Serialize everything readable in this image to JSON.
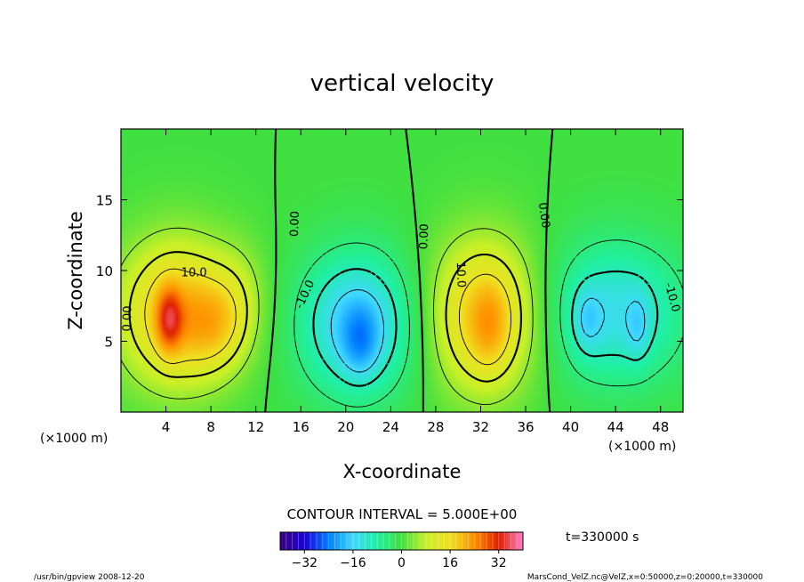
{
  "chart_data": {
    "type": "heatmap",
    "title": "vertical velocity",
    "xlabel": "X-coordinate",
    "ylabel": "Z-coordinate",
    "x_unit_left": "(×1000 m)",
    "x_unit_right": "(×1000 m)",
    "xlim": [
      0,
      50
    ],
    "ylim": [
      0,
      20
    ],
    "x_ticks": [
      4,
      8,
      12,
      16,
      20,
      24,
      28,
      32,
      36,
      40,
      44,
      48
    ],
    "y_ticks": [
      5,
      10,
      15
    ],
    "contour_interval_text": "CONTOUR INTERVAL = 5.000E+00",
    "contour_labels": [
      {
        "text": "10.0",
        "x": 6.5,
        "z": 9.8,
        "rot": 0
      },
      {
        "text": "0.00",
        "x": 0.6,
        "z": 6.6,
        "rot": -88
      },
      {
        "text": "0.00",
        "x": 15.5,
        "z": 13.3,
        "rot": -88
      },
      {
        "text": "-10.0",
        "x": 16.4,
        "z": 8.3,
        "rot": -65
      },
      {
        "text": "0.00",
        "x": 27.0,
        "z": 12.4,
        "rot": -88
      },
      {
        "text": "10.0",
        "x": 30.2,
        "z": 9.7,
        "rot": 88
      },
      {
        "text": "0.00",
        "x": 37.6,
        "z": 13.9,
        "rot": 82
      },
      {
        "text": "-10.0",
        "x": 49.0,
        "z": 8.1,
        "rot": 75
      }
    ],
    "cells": [
      {
        "x": 5.0,
        "z": 7.0,
        "sx": 3.6,
        "sz": 3.6,
        "amp": 20
      },
      {
        "x": 4.3,
        "z": 6.5,
        "sx": 0.8,
        "sz": 1.6,
        "amp": 15
      },
      {
        "x": 8.4,
        "z": 6.0,
        "sx": 2.0,
        "sz": 2.2,
        "amp": 8
      },
      {
        "x": 10.5,
        "z": 8.3,
        "sx": 1.8,
        "sz": 2.6,
        "amp": 4
      },
      {
        "x": 21.0,
        "z": 6.2,
        "sx": 3.6,
        "sz": 3.6,
        "amp": -18
      },
      {
        "x": 21.3,
        "z": 5.0,
        "sx": 1.1,
        "sz": 1.7,
        "amp": -8
      },
      {
        "x": 32.3,
        "z": 6.8,
        "sx": 3.4,
        "sz": 3.8,
        "amp": 19
      },
      {
        "x": 32.8,
        "z": 6.0,
        "sx": 1.2,
        "sz": 2.2,
        "amp": 6
      },
      {
        "x": 44.0,
        "z": 7.0,
        "sx": 4.4,
        "sz": 3.6,
        "amp": -14
      },
      {
        "x": 41.5,
        "z": 6.5,
        "sx": 0.9,
        "sz": 1.6,
        "amp": -6
      },
      {
        "x": 46.0,
        "z": 6.0,
        "sx": 0.7,
        "sz": 1.6,
        "amp": -5
      }
    ],
    "colorbar": {
      "min": -40,
      "max": 40,
      "ticks": [
        -32,
        -16,
        0,
        16,
        32
      ],
      "tick_labels": [
        "−32",
        "−16",
        "0",
        "16",
        "32"
      ],
      "colors": [
        "#3a0080",
        "#1a00d8",
        "#0080ff",
        "#40d8ff",
        "#20f0a0",
        "#40e040",
        "#c8f028",
        "#f0e020",
        "#ff9000",
        "#e02000",
        "#ff80c8"
      ]
    },
    "grid": false,
    "legend": "none"
  },
  "time_label": "t=330000 s",
  "footer": {
    "left": "/usr/bin/gpview  2008-12-20",
    "right": "MarsCond_VelZ.nc@VelZ,x=0:50000,z=0:20000,t=330000"
  }
}
